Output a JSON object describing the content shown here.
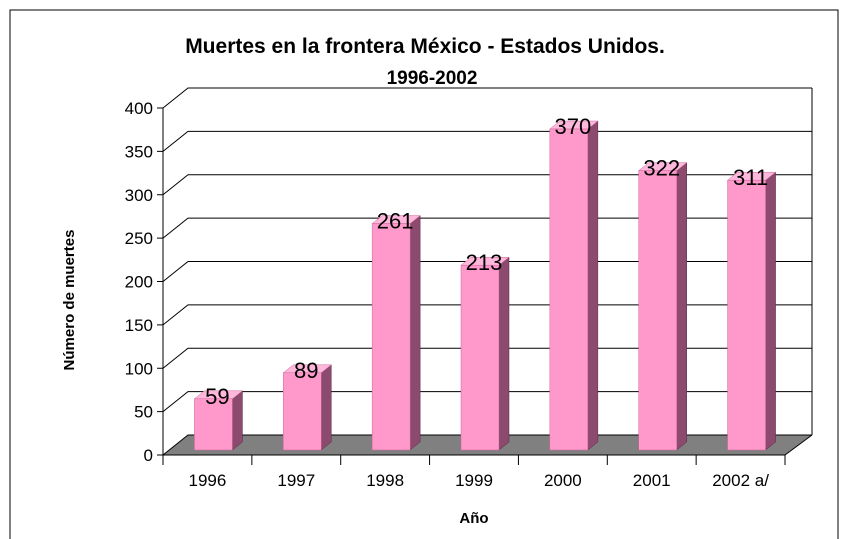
{
  "chart_data": {
    "type": "bar3d",
    "title": "Muertes en la frontera México - Estados Unidos.",
    "subtitle": "1996-2002",
    "y_label": "Número de muertes",
    "x_label": "Año",
    "categories": [
      "1996",
      "1997",
      "1998",
      "1999",
      "2000",
      "2001",
      "2002 a/"
    ],
    "values": [
      59,
      89,
      261,
      213,
      370,
      322,
      311
    ],
    "color": "#ff99cc",
    "ylim": [
      0,
      400
    ],
    "yticks": [
      0,
      50,
      100,
      150,
      200,
      250,
      300,
      350,
      400
    ],
    "grid": true
  }
}
